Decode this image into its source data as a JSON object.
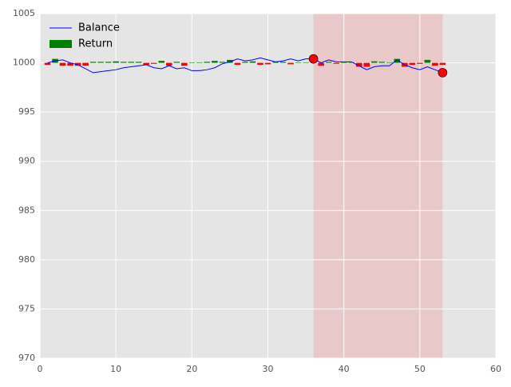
{
  "chart_data": {
    "type": "line",
    "x": [
      1,
      2,
      3,
      4,
      5,
      6,
      7,
      8,
      9,
      10,
      11,
      12,
      13,
      14,
      15,
      16,
      17,
      18,
      19,
      20,
      21,
      22,
      23,
      24,
      25,
      26,
      27,
      28,
      29,
      30,
      31,
      32,
      33,
      34,
      35,
      36,
      37,
      38,
      39,
      40,
      41,
      42,
      43,
      44,
      45,
      46,
      47,
      48,
      49,
      50,
      51,
      52,
      53
    ],
    "series": [
      {
        "name": "Balance",
        "type": "line",
        "color": "#0000ff",
        "values": [
          1000.0,
          1000.2,
          1000.3,
          1000.0,
          999.8,
          999.4,
          999.0,
          999.1,
          999.2,
          999.3,
          999.5,
          999.6,
          999.7,
          999.8,
          999.5,
          999.4,
          999.7,
          999.4,
          999.5,
          999.2,
          999.2,
          999.3,
          999.5,
          999.9,
          1000.1,
          1000.4,
          1000.2,
          1000.3,
          1000.5,
          1000.3,
          1000.1,
          1000.2,
          1000.4,
          1000.2,
          1000.4,
          1000.4,
          1000.0,
          1000.3,
          1000.1,
          1000.1,
          1000.1,
          999.7,
          999.3,
          999.6,
          999.7,
          999.7,
          1000.3,
          999.8,
          999.5,
          999.3,
          999.6,
          999.3,
          999.0
        ]
      },
      {
        "name": "Return",
        "type": "bar",
        "color": "#008000",
        "negative_color": "#ff0000",
        "baseline": 1000,
        "values": [
          -0.2,
          0.4,
          -0.3,
          -0.3,
          -0.3,
          -0.3,
          0.1,
          0.1,
          0.1,
          0.15,
          0.1,
          0.1,
          0.1,
          -0.2,
          -0.1,
          0.2,
          -0.3,
          0.1,
          -0.3,
          0.05,
          0.05,
          0.1,
          0.2,
          0.1,
          0.3,
          -0.2,
          0.1,
          0.15,
          -0.2,
          -0.15,
          0.1,
          0.1,
          -0.15,
          0.05,
          0.05,
          0.1,
          -0.3,
          0.1,
          -0.1,
          0.05,
          0.05,
          -0.4,
          -0.4,
          0.15,
          0.1,
          0.05,
          0.4,
          -0.4,
          -0.2,
          -0.1,
          0.3,
          -0.3,
          -0.2
        ]
      },
      {
        "type": "scatter",
        "color": "#ff0000",
        "x": [
          36,
          53
        ],
        "values": [
          1000.4,
          999.0
        ]
      }
    ],
    "highlight": {
      "xlim": [
        36,
        53
      ],
      "color": "#e8c8c8"
    },
    "xlim": [
      0,
      60
    ],
    "xticks": [
      0,
      10,
      20,
      30,
      40,
      50,
      60
    ],
    "ylim": [
      970,
      1005
    ],
    "yticks": [
      970,
      975,
      980,
      985,
      990,
      995,
      1000,
      1005
    ],
    "grid": true,
    "legend": "upper left"
  }
}
